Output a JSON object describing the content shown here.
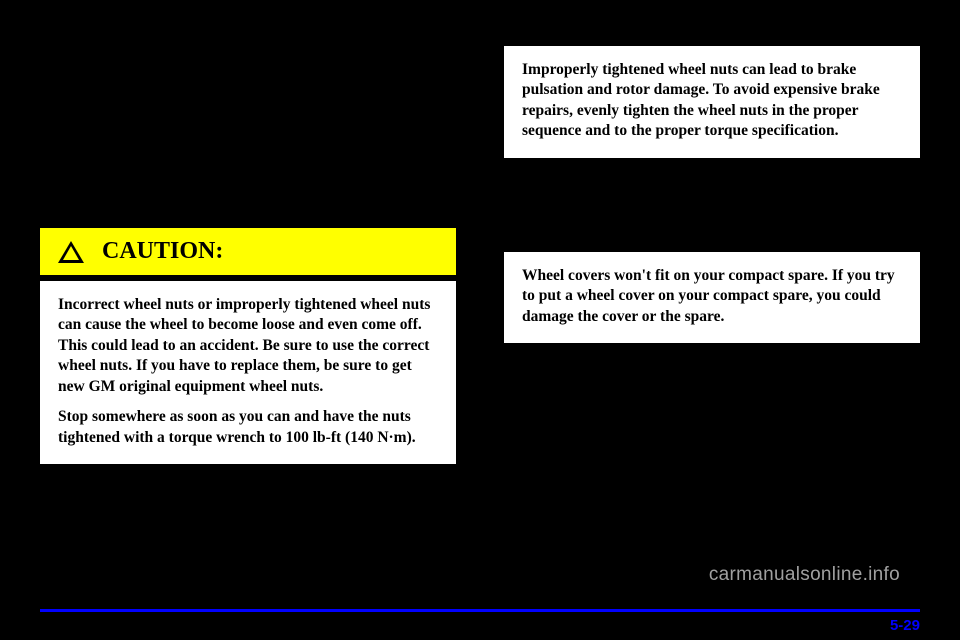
{
  "caution": {
    "label": "CAUTION:",
    "para1": "Incorrect wheel nuts or improperly tightened wheel nuts can cause the wheel to become loose and even come off. This could lead to an accident. Be sure to use the correct wheel nuts. If you have to replace them, be sure to get new GM original equipment wheel nuts.",
    "para2": "Stop somewhere as soon as you can and have the nuts tightened with a torque wrench to 100 lb-ft (140 N·m)."
  },
  "notice1": {
    "text": "Improperly tightened wheel nuts can lead to brake pulsation and rotor damage. To avoid expensive brake repairs, evenly tighten the wheel nuts in the proper sequence and to the proper torque specification."
  },
  "notice2": {
    "text": "Wheel covers won't fit on your compact spare. If you try to put a wheel cover on your compact spare, you could damage the cover or the spare."
  },
  "watermark": "carmanualsonline.info",
  "page_number": "5-29",
  "colors": {
    "bg": "#000000",
    "caution_bg": "#ffff00",
    "rule": "#0000ff",
    "text_light": "#ffffff",
    "text_dark": "#000000",
    "watermark": "#bdbdbd"
  }
}
